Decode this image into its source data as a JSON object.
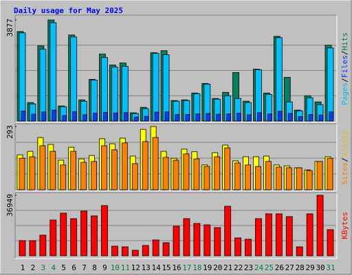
{
  "chart_data": [
    {
      "type": "bar",
      "title": "Daily usage for May 2025",
      "ylim": [
        0,
        3877
      ],
      "yticks": [
        3877
      ],
      "legend_separator": "/",
      "series": [
        {
          "name": "Hits",
          "color": "#00805c",
          "values": [
            3432,
            707,
            2882,
            3877,
            576,
            3301,
            812,
            1598,
            2567,
            2148,
            2227,
            314,
            524,
            2620,
            2698,
            786,
            812,
            1074,
            1441,
            864,
            1100,
            1860,
            760,
            1991,
            1074,
            3248,
            1677,
            419,
            969,
            733,
            2908
          ]
        },
        {
          "name": "Files",
          "color": "#0040ff",
          "values": [
            380,
            260,
            350,
            420,
            210,
            360,
            240,
            300,
            330,
            310,
            320,
            150,
            180,
            340,
            350,
            250,
            250,
            270,
            290,
            260,
            270,
            300,
            240,
            320,
            270,
            370,
            290,
            170,
            250,
            230,
            350
          ]
        },
        {
          "name": "Pages",
          "color": "#00c0ff",
          "values": [
            3380,
            655,
            2751,
            3772,
            550,
            3222,
            760,
            1572,
            2436,
            2069,
            2096,
            288,
            472,
            2594,
            2541,
            760,
            786,
            1048,
            1415,
            838,
            969,
            864,
            707,
            1965,
            1022,
            3196,
            733,
            393,
            891,
            629,
            2803
          ]
        }
      ]
    },
    {
      "type": "bar",
      "ylim": [
        0,
        293
      ],
      "yticks": [
        293
      ],
      "legend_separator": "/",
      "series": [
        {
          "name": "Visits",
          "color": "#ffff00",
          "values": [
            162,
            178,
            242,
            210,
            137,
            197,
            143,
            159,
            236,
            213,
            239,
            156,
            280,
            293,
            178,
            146,
            188,
            176,
            115,
            172,
            207,
            134,
            153,
            153,
            156,
            115,
            111,
            102,
            92,
            131,
            153
          ]
        },
        {
          "name": "Sites",
          "color": "#ff8000",
          "values": [
            146,
            153,
            204,
            178,
            115,
            178,
            127,
            131,
            204,
            185,
            217,
            121,
            223,
            242,
            150,
            137,
            166,
            143,
            108,
            153,
            194,
            124,
            115,
            108,
            131,
            105,
            102,
            102,
            89,
            131,
            146
          ]
        }
      ]
    },
    {
      "type": "bar",
      "ylim": [
        0,
        36949
      ],
      "yticks": [
        36949
      ],
      "categories": [
        "1",
        "2",
        "3",
        "4",
        "5",
        "6",
        "7",
        "8",
        "9",
        "10",
        "11",
        "12",
        "13",
        "14",
        "15",
        "16",
        "17",
        "18",
        "19",
        "20",
        "21",
        "22",
        "23",
        "24",
        "25",
        "26",
        "27",
        "28",
        "29",
        "30",
        "31"
      ],
      "category_colors": [
        "#000000",
        "#000000",
        "#008040",
        "#008040",
        "#000000",
        "#000000",
        "#000000",
        "#000000",
        "#000000",
        "#008040",
        "#008040",
        "#000000",
        "#000000",
        "#000000",
        "#000000",
        "#000000",
        "#008040",
        "#008040",
        "#000000",
        "#000000",
        "#000000",
        "#000000",
        "#000000",
        "#008040",
        "#008040",
        "#000000",
        "#000000",
        "#000000",
        "#000000",
        "#000000",
        "#008040"
      ],
      "series": [
        {
          "name": "KBytes",
          "color": "#ff0000",
          "values": [
            9237,
            9237,
            12596,
            21833,
            26032,
            22672,
            27291,
            24353,
            30651,
            5878,
            5458,
            3359,
            6298,
            9657,
            7978,
            18054,
            22672,
            19733,
            18894,
            17214,
            30231,
            10916,
            10077,
            22672,
            25612,
            25612,
            23932,
            5458,
            25612,
            36949,
            15955
          ]
        }
      ]
    }
  ]
}
